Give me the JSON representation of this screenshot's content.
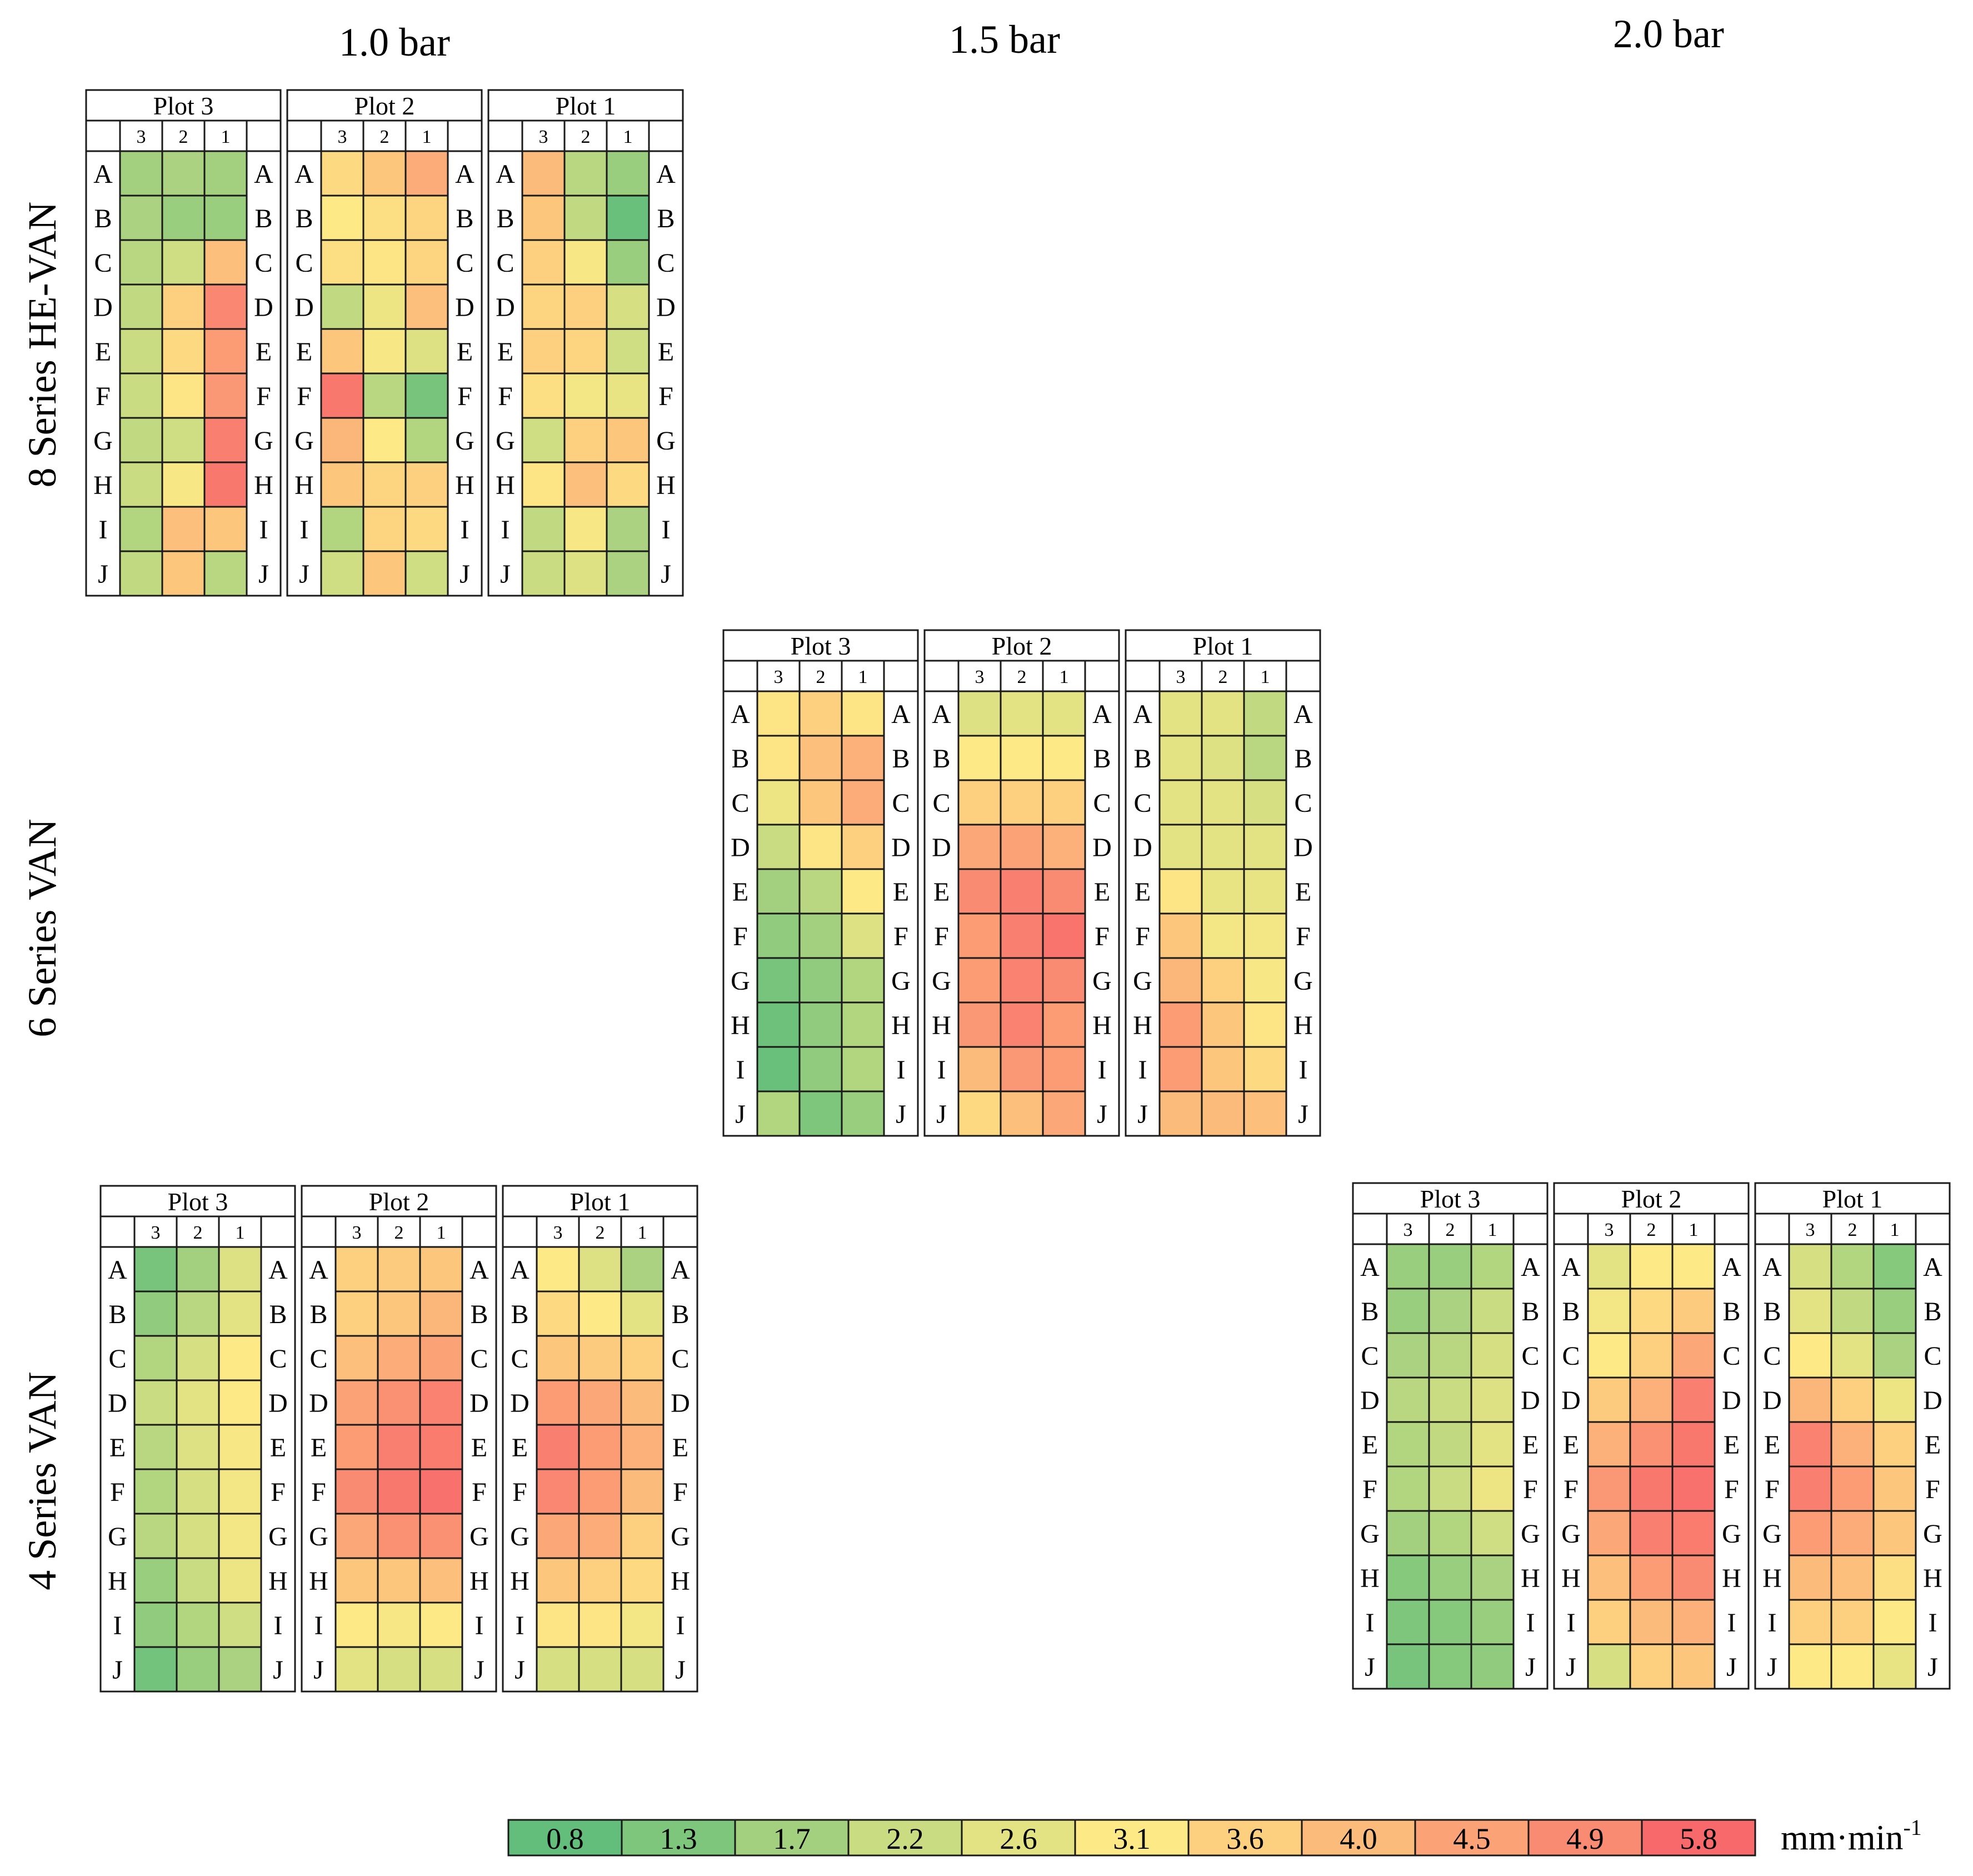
{
  "chart_data": {
    "type": "heatmap",
    "title": "",
    "column_titles": [
      "1.0 bar",
      "1.5 bar",
      "2.0 bar"
    ],
    "row_titles": [
      "8 Series HE-VAN",
      "6 Series VAN",
      "4 Series VAN"
    ],
    "subcolumns": [
      "3",
      "2",
      "1"
    ],
    "rows": [
      "A",
      "B",
      "C",
      "D",
      "E",
      "F",
      "G",
      "H",
      "I",
      "J"
    ],
    "legend": {
      "values": [
        "0.8",
        "1.3",
        "1.7",
        "2.2",
        "2.6",
        "3.1",
        "3.6",
        "4.0",
        "4.5",
        "4.9",
        "5.8"
      ],
      "colors": [
        "#63be7b",
        "#7dc67c",
        "#a2d07f",
        "#c9dc82",
        "#e3e384",
        "#fde985",
        "#fdd07f",
        "#fbbb7b",
        "#fba276",
        "#f98b72",
        "#f8696b"
      ],
      "unit": "mm·min",
      "unit_exponent": "-1"
    },
    "panels": [
      {
        "nozzle": "8 Series HE-VAN",
        "pressure": "1.0 bar",
        "plots": [
          {
            "title": "Plot 3",
            "values": [
              [
                1.7,
                1.8,
                1.7
              ],
              [
                1.8,
                1.6,
                1.6
              ],
              [
                2.0,
                2.3,
                3.9
              ],
              [
                2.1,
                3.6,
                5.0
              ],
              [
                2.2,
                3.4,
                4.6
              ],
              [
                2.2,
                3.2,
                4.7
              ],
              [
                2.1,
                2.3,
                5.2
              ],
              [
                2.2,
                3.0,
                5.4
              ],
              [
                1.9,
                3.9,
                3.8
              ],
              [
                2.1,
                3.8,
                2.0
              ]
            ]
          },
          {
            "title": "Plot 2",
            "values": [
              [
                3.4,
                3.8,
                4.3
              ],
              [
                3.1,
                3.3,
                3.5
              ],
              [
                3.3,
                3.2,
                3.5
              ],
              [
                2.1,
                2.8,
                3.9
              ],
              [
                3.8,
                3.0,
                2.5
              ],
              [
                5.4,
                2.0,
                1.2
              ],
              [
                4.1,
                3.1,
                1.9
              ],
              [
                3.8,
                3.5,
                3.6
              ],
              [
                1.9,
                3.5,
                3.4
              ],
              [
                2.3,
                3.8,
                2.3
              ]
            ]
          },
          {
            "title": "Plot 1",
            "values": [
              [
                4.0,
                2.0,
                1.6
              ],
              [
                3.8,
                2.1,
                0.9
              ],
              [
                3.6,
                3.0,
                1.6
              ],
              [
                3.5,
                3.6,
                2.4
              ],
              [
                3.6,
                3.5,
                2.3
              ],
              [
                3.3,
                2.9,
                2.7
              ],
              [
                2.3,
                3.6,
                3.8
              ],
              [
                3.2,
                3.9,
                3.4
              ],
              [
                2.1,
                3.0,
                1.8
              ],
              [
                2.2,
                2.5,
                1.8
              ]
            ]
          }
        ]
      },
      {
        "nozzle": "6 Series VAN",
        "pressure": "1.5 bar",
        "plots": [
          {
            "title": "Plot 3",
            "values": [
              [
                3.2,
                3.6,
                3.2
              ],
              [
                3.2,
                3.9,
                4.2
              ],
              [
                2.8,
                3.8,
                4.3
              ],
              [
                2.2,
                3.2,
                3.6
              ],
              [
                1.7,
                2.0,
                3.1
              ],
              [
                1.5,
                1.7,
                2.5
              ],
              [
                1.2,
                1.5,
                1.9
              ],
              [
                1.0,
                1.5,
                1.9
              ],
              [
                0.9,
                1.5,
                1.9
              ],
              [
                1.9,
                1.3,
                1.6
              ]
            ]
          },
          {
            "title": "Plot 2",
            "values": [
              [
                2.5,
                2.6,
                2.6
              ],
              [
                3.1,
                3.1,
                3.1
              ],
              [
                3.6,
                3.6,
                3.6
              ],
              [
                4.4,
                4.5,
                4.2
              ],
              [
                4.9,
                5.2,
                4.9
              ],
              [
                4.6,
                5.2,
                5.5
              ],
              [
                4.6,
                5.1,
                4.9
              ],
              [
                4.7,
                5.1,
                4.6
              ],
              [
                4.0,
                4.7,
                4.6
              ],
              [
                3.4,
                3.9,
                4.4
              ]
            ]
          },
          {
            "title": "Plot 1",
            "values": [
              [
                2.6,
                2.6,
                2.1
              ],
              [
                2.6,
                2.5,
                2.0
              ],
              [
                2.6,
                2.6,
                2.4
              ],
              [
                2.6,
                2.6,
                2.6
              ],
              [
                3.2,
                2.7,
                2.7
              ],
              [
                3.8,
                2.9,
                2.9
              ],
              [
                4.1,
                3.6,
                3.0
              ],
              [
                4.6,
                3.8,
                3.2
              ],
              [
                4.6,
                3.8,
                3.4
              ],
              [
                4.0,
                4.0,
                3.9
              ]
            ]
          }
        ]
      },
      {
        "nozzle": "4 Series VAN",
        "pressure": "1.0 bar",
        "plots": [
          {
            "title": "Plot 3",
            "values": [
              [
                1.2,
                1.7,
                2.5
              ],
              [
                1.5,
                2.0,
                2.6
              ],
              [
                1.9,
                2.4,
                3.1
              ],
              [
                2.2,
                2.6,
                3.1
              ],
              [
                2.0,
                2.5,
                3.0
              ],
              [
                1.9,
                2.4,
                2.9
              ],
              [
                2.0,
                2.4,
                2.9
              ],
              [
                1.6,
                2.2,
                2.8
              ],
              [
                1.5,
                1.9,
                2.3
              ],
              [
                1.1,
                1.6,
                1.8
              ]
            ]
          },
          {
            "title": "Plot 2",
            "values": [
              [
                3.6,
                3.7,
                3.8
              ],
              [
                3.6,
                3.8,
                4.1
              ],
              [
                3.9,
                4.3,
                4.5
              ],
              [
                4.5,
                4.8,
                5.1
              ],
              [
                4.6,
                5.2,
                5.3
              ],
              [
                4.9,
                5.4,
                5.6
              ],
              [
                4.4,
                4.8,
                4.8
              ],
              [
                3.8,
                3.8,
                3.9
              ],
              [
                3.1,
                3.0,
                3.1
              ],
              [
                2.6,
                2.4,
                2.4
              ]
            ]
          },
          {
            "title": "Plot 1",
            "values": [
              [
                3.1,
                2.5,
                1.8
              ],
              [
                3.4,
                3.1,
                2.6
              ],
              [
                3.8,
                3.7,
                3.6
              ],
              [
                4.6,
                4.4,
                4.0
              ],
              [
                5.2,
                4.6,
                4.2
              ],
              [
                5.0,
                4.6,
                4.0
              ],
              [
                4.4,
                4.3,
                3.6
              ],
              [
                3.8,
                3.6,
                3.4
              ],
              [
                3.2,
                3.2,
                2.9
              ],
              [
                2.4,
                2.4,
                2.4
              ]
            ]
          }
        ]
      },
      {
        "nozzle": "4 Series VAN",
        "pressure": "2.0 bar",
        "plots": [
          {
            "title": "Plot 3",
            "values": [
              [
                1.6,
                1.6,
                1.9
              ],
              [
                1.6,
                1.8,
                2.2
              ],
              [
                1.8,
                2.0,
                2.4
              ],
              [
                2.0,
                2.2,
                2.5
              ],
              [
                1.9,
                2.1,
                2.6
              ],
              [
                1.9,
                2.2,
                2.8
              ],
              [
                1.7,
                1.9,
                2.3
              ],
              [
                1.4,
                1.6,
                1.8
              ],
              [
                1.3,
                1.4,
                1.6
              ],
              [
                1.2,
                1.4,
                1.5
              ]
            ]
          },
          {
            "title": "Plot 2",
            "values": [
              [
                2.6,
                3.1,
                3.1
              ],
              [
                2.9,
                3.4,
                3.7
              ],
              [
                3.1,
                3.6,
                4.4
              ],
              [
                3.7,
                4.2,
                5.2
              ],
              [
                4.2,
                4.8,
                5.4
              ],
              [
                4.7,
                5.4,
                5.6
              ],
              [
                4.4,
                5.2,
                5.3
              ],
              [
                3.9,
                4.6,
                4.9
              ],
              [
                3.6,
                4.0,
                4.2
              ],
              [
                2.4,
                3.6,
                3.8
              ]
            ]
          },
          {
            "title": "Plot 1",
            "values": [
              [
                2.4,
                1.9,
                1.4
              ],
              [
                2.6,
                2.1,
                1.6
              ],
              [
                3.1,
                2.6,
                1.8
              ],
              [
                4.1,
                3.6,
                2.8
              ],
              [
                5.1,
                4.2,
                3.6
              ],
              [
                5.2,
                4.6,
                3.8
              ],
              [
                4.6,
                4.3,
                3.8
              ],
              [
                4.0,
                3.9,
                3.3
              ],
              [
                3.6,
                3.6,
                3.1
              ],
              [
                3.1,
                3.1,
                2.7
              ]
            ]
          }
        ]
      }
    ]
  }
}
